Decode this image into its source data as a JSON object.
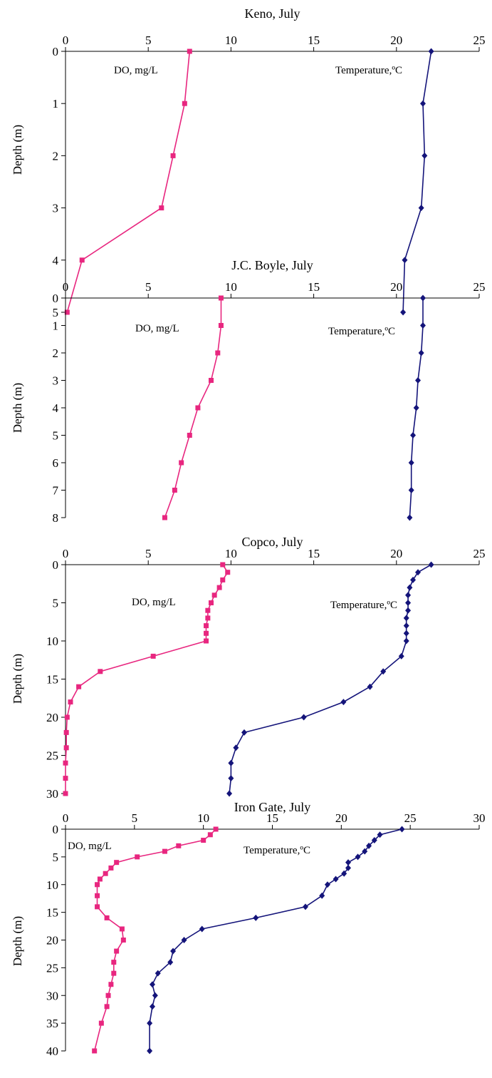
{
  "colors": {
    "do": "#e8267f",
    "temperature": "#14147a",
    "axis": "#000000"
  },
  "chart_data": [
    {
      "type": "line",
      "title": "Keno, July",
      "ylabel": "Depth (m)",
      "xlim": [
        0,
        25
      ],
      "ylim": [
        0,
        5
      ],
      "xticks": [
        0,
        5,
        10,
        15,
        20,
        25
      ],
      "yticks": [
        0,
        1,
        2,
        3,
        4,
        5
      ],
      "series": [
        {
          "name": "DO, mg/L",
          "marker": "square",
          "color": "#e8267f",
          "points": [
            [
              7.5,
              0
            ],
            [
              7.2,
              1
            ],
            [
              6.5,
              2
            ],
            [
              5.8,
              3
            ],
            [
              1.0,
              4
            ],
            [
              0.1,
              5
            ]
          ]
        },
        {
          "name": "Temperature,ºC",
          "marker": "diamond",
          "color": "#14147a",
          "points": [
            [
              22.1,
              0
            ],
            [
              21.6,
              1
            ],
            [
              21.7,
              2
            ],
            [
              21.5,
              3
            ],
            [
              20.5,
              4
            ],
            [
              20.4,
              5
            ]
          ]
        }
      ]
    },
    {
      "type": "line",
      "title": "J.C. Boyle, July",
      "ylabel": "Depth (m)",
      "xlim": [
        0,
        25
      ],
      "ylim": [
        0,
        8
      ],
      "xticks": [
        0,
        5,
        10,
        15,
        20,
        25
      ],
      "yticks": [
        0,
        1,
        2,
        3,
        4,
        5,
        6,
        7,
        8
      ],
      "series": [
        {
          "name": "DO, mg/L",
          "marker": "square",
          "color": "#e8267f",
          "points": [
            [
              9.4,
              0
            ],
            [
              9.4,
              1
            ],
            [
              9.2,
              2
            ],
            [
              8.8,
              3
            ],
            [
              8.0,
              4
            ],
            [
              7.5,
              5
            ],
            [
              7.0,
              6
            ],
            [
              6.6,
              7
            ],
            [
              6.0,
              8
            ]
          ]
        },
        {
          "name": "Temperature,ºC",
          "marker": "diamond",
          "color": "#14147a",
          "points": [
            [
              21.6,
              0
            ],
            [
              21.6,
              1
            ],
            [
              21.5,
              2
            ],
            [
              21.3,
              3
            ],
            [
              21.2,
              4
            ],
            [
              21.0,
              5
            ],
            [
              20.9,
              6
            ],
            [
              20.9,
              7
            ],
            [
              20.8,
              8
            ]
          ]
        }
      ]
    },
    {
      "type": "line",
      "title": "Copco, July",
      "ylabel": "Depth (m)",
      "xlim": [
        0,
        25
      ],
      "ylim": [
        0,
        30
      ],
      "xticks": [
        0,
        5,
        10,
        15,
        20,
        25
      ],
      "yticks": [
        0,
        5,
        10,
        15,
        20,
        25,
        30
      ],
      "series": [
        {
          "name": "DO, mg/L",
          "marker": "square",
          "color": "#e8267f",
          "points": [
            [
              9.5,
              0
            ],
            [
              9.8,
              1
            ],
            [
              9.5,
              2
            ],
            [
              9.3,
              3
            ],
            [
              9.0,
              4
            ],
            [
              8.8,
              5
            ],
            [
              8.6,
              6
            ],
            [
              8.6,
              7
            ],
            [
              8.5,
              8
            ],
            [
              8.5,
              9
            ],
            [
              8.5,
              10
            ],
            [
              5.3,
              12
            ],
            [
              2.1,
              14
            ],
            [
              0.8,
              16
            ],
            [
              0.3,
              18
            ],
            [
              0.1,
              20
            ],
            [
              0.05,
              22
            ],
            [
              0.05,
              24
            ],
            [
              0.0,
              26
            ],
            [
              0.0,
              28
            ],
            [
              0.0,
              30
            ]
          ]
        },
        {
          "name": "Temperature,ºC",
          "marker": "diamond",
          "color": "#14147a",
          "points": [
            [
              22.1,
              0
            ],
            [
              21.3,
              1
            ],
            [
              21.0,
              2
            ],
            [
              20.8,
              3
            ],
            [
              20.7,
              4
            ],
            [
              20.7,
              5
            ],
            [
              20.7,
              6
            ],
            [
              20.6,
              7
            ],
            [
              20.6,
              8
            ],
            [
              20.6,
              9
            ],
            [
              20.6,
              10
            ],
            [
              20.3,
              12
            ],
            [
              19.2,
              14
            ],
            [
              18.4,
              16
            ],
            [
              16.8,
              18
            ],
            [
              14.4,
              20
            ],
            [
              10.8,
              22
            ],
            [
              10.3,
              24
            ],
            [
              10.0,
              26
            ],
            [
              10.0,
              28
            ],
            [
              9.9,
              30
            ]
          ]
        }
      ]
    },
    {
      "type": "line",
      "title": "Iron Gate, July",
      "ylabel": "Depth (m)",
      "xlim": [
        0,
        30
      ],
      "ylim": [
        0,
        40
      ],
      "xticks": [
        0,
        5,
        10,
        15,
        20,
        25,
        30
      ],
      "yticks": [
        0,
        5,
        10,
        15,
        20,
        25,
        30,
        35,
        40
      ],
      "series": [
        {
          "name": "DO, mg/L",
          "marker": "square",
          "color": "#e8267f",
          "points": [
            [
              10.9,
              0
            ],
            [
              10.5,
              1
            ],
            [
              10.0,
              2
            ],
            [
              8.2,
              3
            ],
            [
              7.2,
              4
            ],
            [
              5.2,
              5
            ],
            [
              3.7,
              6
            ],
            [
              3.3,
              7
            ],
            [
              2.9,
              8
            ],
            [
              2.5,
              9
            ],
            [
              2.3,
              10
            ],
            [
              2.3,
              12
            ],
            [
              2.3,
              14
            ],
            [
              3.0,
              16
            ],
            [
              4.1,
              18
            ],
            [
              4.2,
              20
            ],
            [
              3.7,
              22
            ],
            [
              3.5,
              24
            ],
            [
              3.5,
              26
            ],
            [
              3.3,
              28
            ],
            [
              3.1,
              30
            ],
            [
              3.0,
              32
            ],
            [
              2.6,
              35
            ],
            [
              2.1,
              40
            ]
          ]
        },
        {
          "name": "Temperature,ºC",
          "marker": "diamond",
          "color": "#14147a",
          "points": [
            [
              24.4,
              0
            ],
            [
              22.8,
              1
            ],
            [
              22.4,
              2
            ],
            [
              22.0,
              3
            ],
            [
              21.7,
              4
            ],
            [
              21.2,
              5
            ],
            [
              20.5,
              6
            ],
            [
              20.5,
              7
            ],
            [
              20.2,
              8
            ],
            [
              19.6,
              9
            ],
            [
              19.0,
              10
            ],
            [
              18.6,
              12
            ],
            [
              17.4,
              14
            ],
            [
              13.8,
              16
            ],
            [
              9.9,
              18
            ],
            [
              8.6,
              20
            ],
            [
              7.8,
              22
            ],
            [
              7.6,
              24
            ],
            [
              6.7,
              26
            ],
            [
              6.3,
              28
            ],
            [
              6.5,
              30
            ],
            [
              6.3,
              32
            ],
            [
              6.1,
              35
            ],
            [
              6.1,
              40
            ]
          ]
        }
      ]
    }
  ]
}
